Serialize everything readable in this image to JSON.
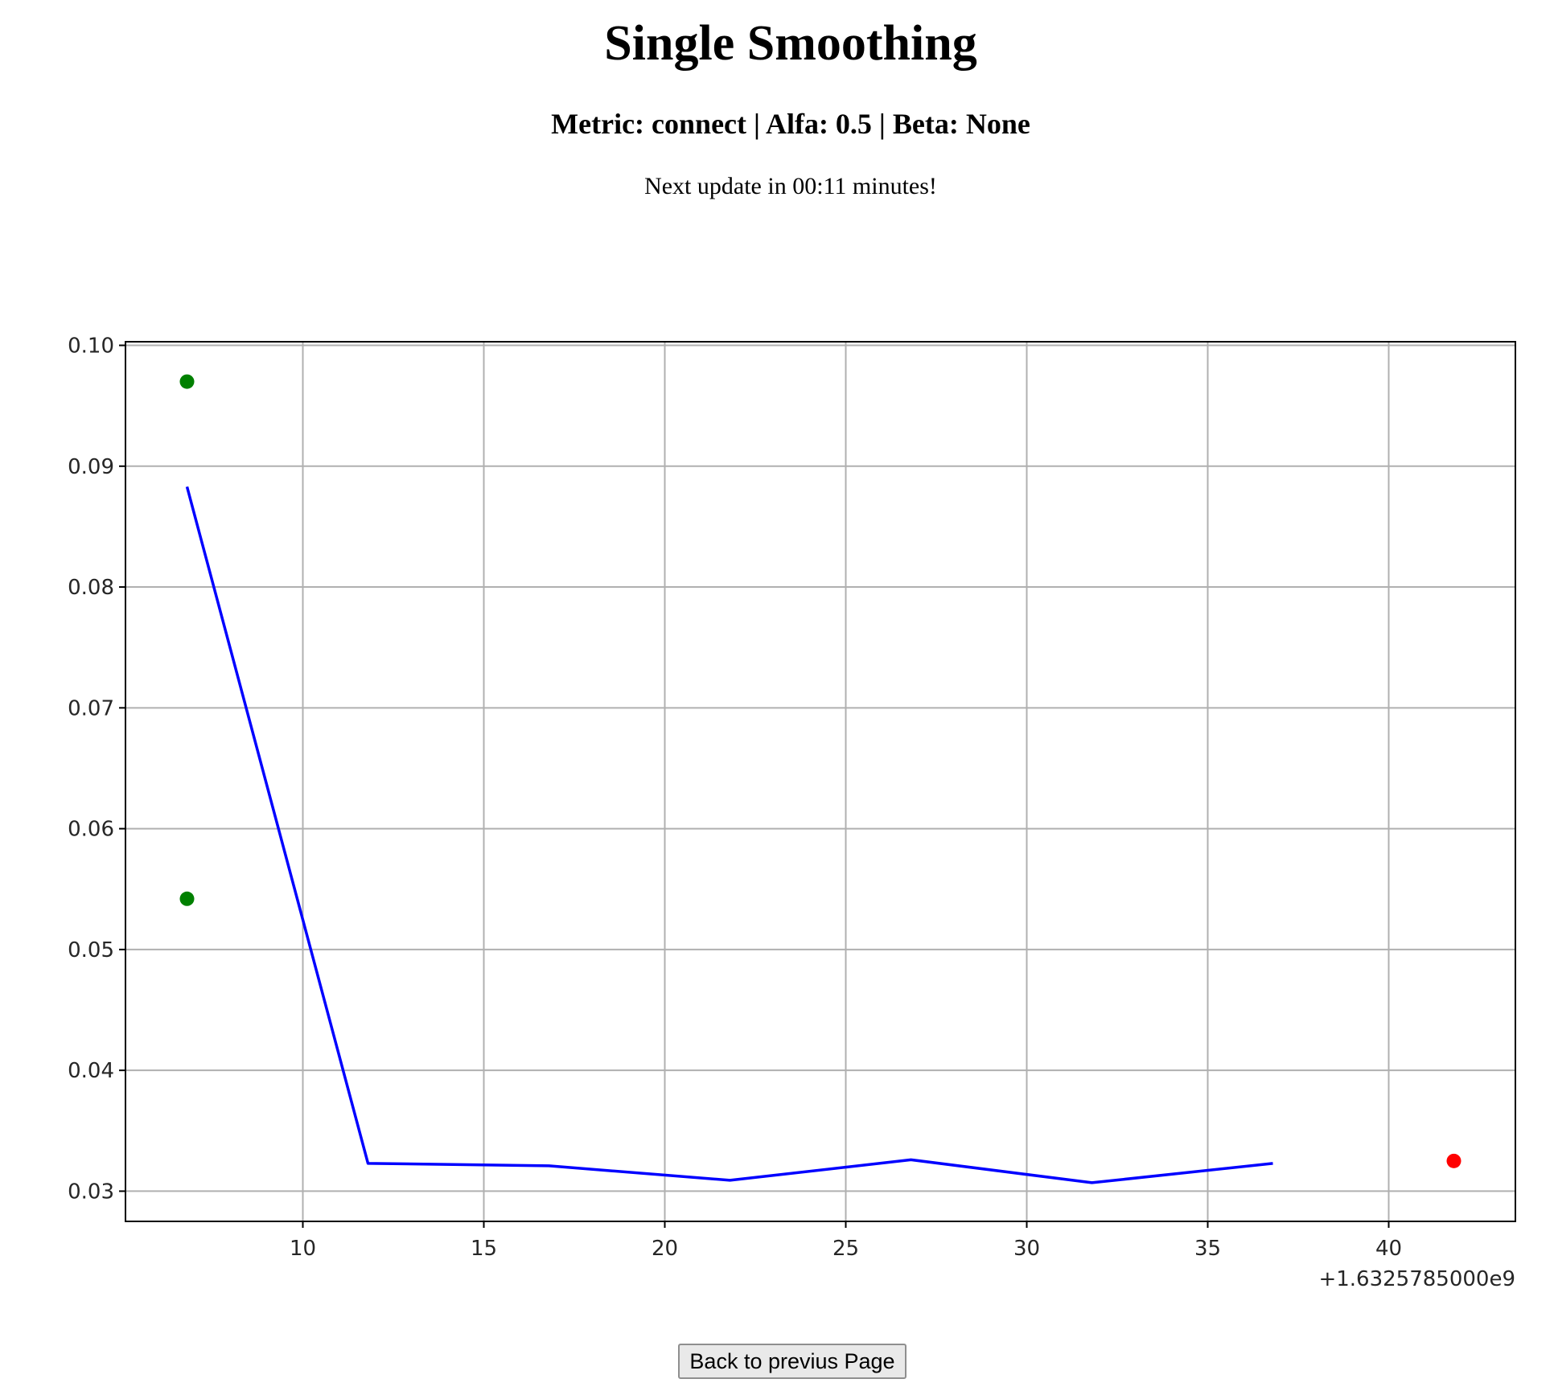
{
  "header": {
    "title": "Single Smoothing",
    "subtitle": "Metric: connect | Alfa: 0.5 | Beta: None",
    "update_text": "Next update in 00:11 minutes!"
  },
  "back_button": {
    "label": "Back to previus Page"
  },
  "chart_data": {
    "type": "line",
    "x_offset_label": "+1.6325785000e9",
    "xlim": [
      5.1,
      43.5
    ],
    "ylim": [
      0.0275,
      0.1003
    ],
    "x_ticks": [
      10,
      15,
      20,
      25,
      30,
      35,
      40
    ],
    "y_ticks": [
      0.03,
      0.04,
      0.05,
      0.06,
      0.07,
      0.08,
      0.09,
      0.1
    ],
    "x_tick_labels": [
      "10",
      "15",
      "20",
      "25",
      "30",
      "35",
      "40"
    ],
    "y_tick_labels": [
      "0.03",
      "0.04",
      "0.05",
      "0.06",
      "0.07",
      "0.08",
      "0.09",
      "0.10"
    ],
    "grid": true,
    "series": [
      {
        "kind": "line",
        "color": "#0000ff",
        "x": [
          6.8,
          11.8,
          16.8,
          21.8,
          26.8,
          31.8,
          36.8
        ],
        "y": [
          0.0883,
          0.0323,
          0.0321,
          0.0309,
          0.0326,
          0.0307,
          0.0323
        ]
      },
      {
        "kind": "scatter",
        "color": "#008000",
        "x": [
          6.8,
          6.8
        ],
        "y": [
          0.097,
          0.0542
        ]
      },
      {
        "kind": "scatter",
        "color": "#ff0000",
        "x": [
          41.8
        ],
        "y": [
          0.0325
        ]
      }
    ]
  }
}
